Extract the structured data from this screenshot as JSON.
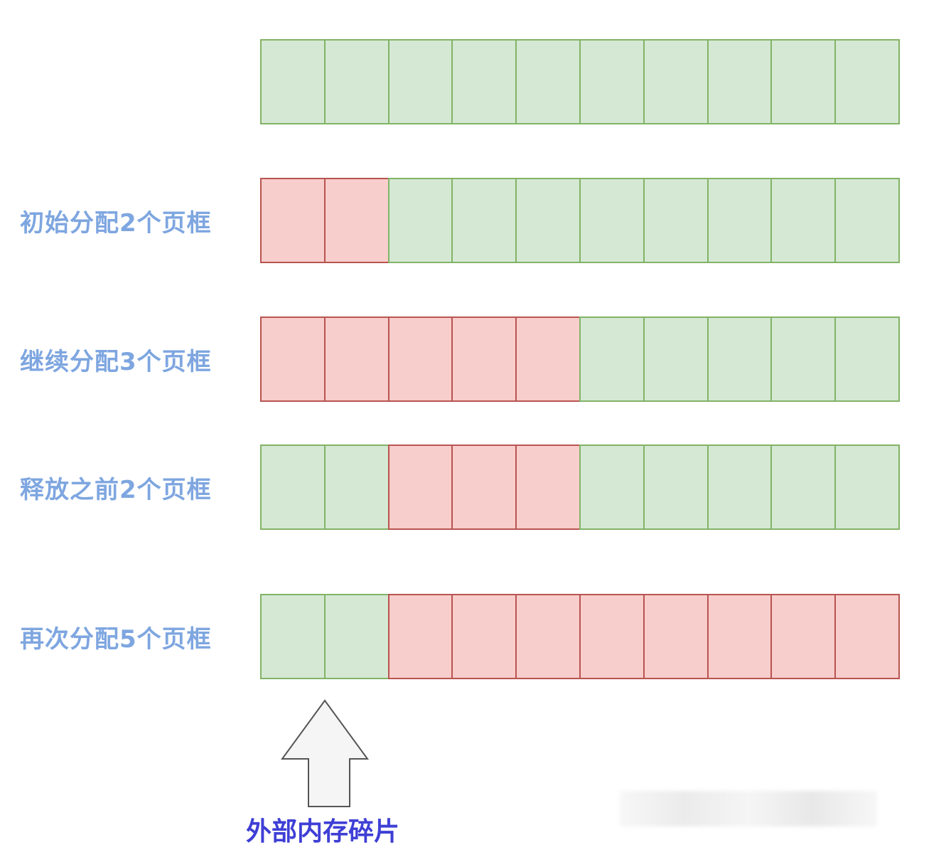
{
  "colors": {
    "free_fill": "#d5e8d4",
    "free_stroke": "#82b366",
    "used_fill": "#f8cecc",
    "used_stroke": "#b85450",
    "label": "#7ea6e0",
    "fragment_label": "#3f3fd6"
  },
  "rows": [
    {
      "label": "",
      "cells": [
        "free",
        "free",
        "free",
        "free",
        "free",
        "free",
        "free",
        "free",
        "free",
        "free"
      ]
    },
    {
      "label": "初始分配2个页框",
      "cells": [
        "used",
        "used",
        "free",
        "free",
        "free",
        "free",
        "free",
        "free",
        "free",
        "free"
      ]
    },
    {
      "label": "继续分配3个页框",
      "cells": [
        "used",
        "used",
        "used",
        "used",
        "used",
        "free",
        "free",
        "free",
        "free",
        "free"
      ]
    },
    {
      "label": "释放之前2个页框",
      "cells": [
        "free",
        "free",
        "used",
        "used",
        "used",
        "free",
        "free",
        "free",
        "free",
        "free"
      ]
    },
    {
      "label": "再次分配5个页框",
      "cells": [
        "free",
        "free",
        "used",
        "used",
        "used",
        "used",
        "used",
        "used",
        "used",
        "used"
      ]
    }
  ],
  "fragment": {
    "label": "外部内存碎片",
    "icon": "up-arrow-icon"
  }
}
